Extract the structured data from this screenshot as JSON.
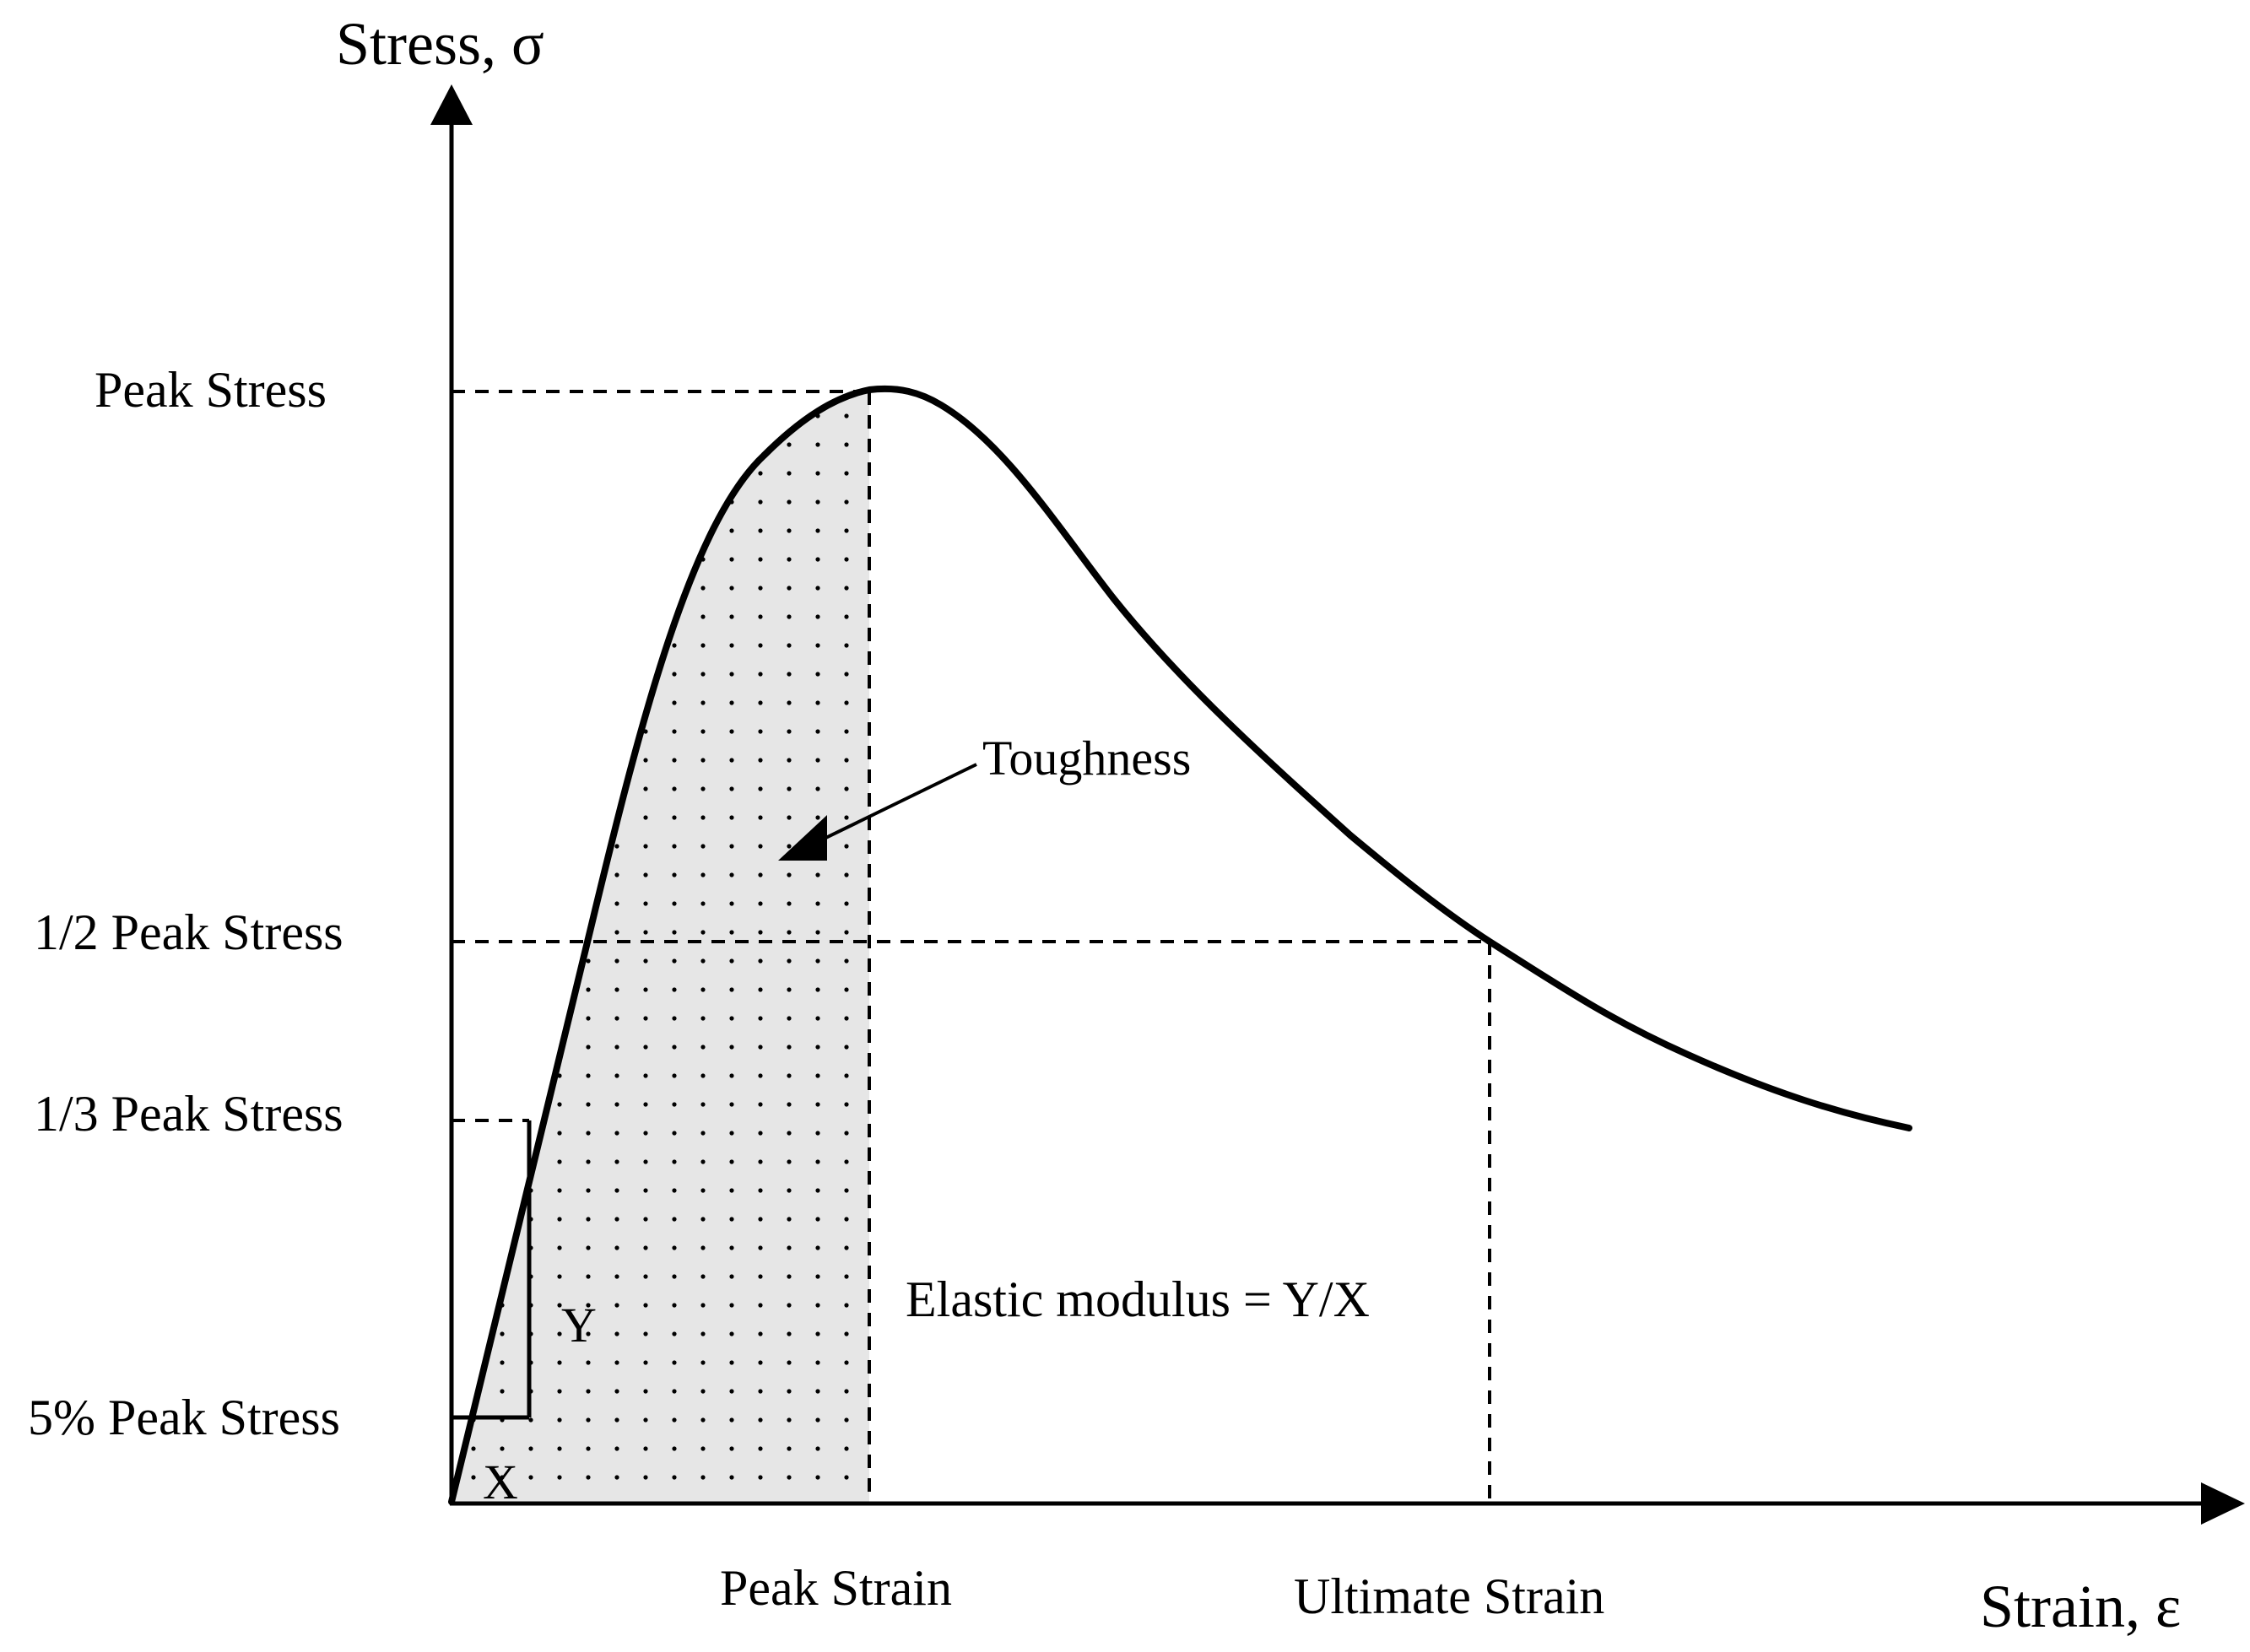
{
  "axes": {
    "y_title": "Stress, σ",
    "x_title": "Strain, ε"
  },
  "y_labels": {
    "peak": "Peak Stress",
    "half": "1/2 Peak Stress",
    "third": "1/3 Peak Stress",
    "five_percent": "5% Peak Stress"
  },
  "x_labels": {
    "peak_strain": "Peak Strain",
    "ultimate_strain": "Ultimate Strain"
  },
  "annotations": {
    "toughness": "Toughness",
    "modulus": "Elastic modulus = Y/X",
    "y_mark": "Y",
    "x_mark": "X"
  },
  "colors": {
    "line": "#000000",
    "shade": "#e6e6e6",
    "dots": "#000000"
  }
}
